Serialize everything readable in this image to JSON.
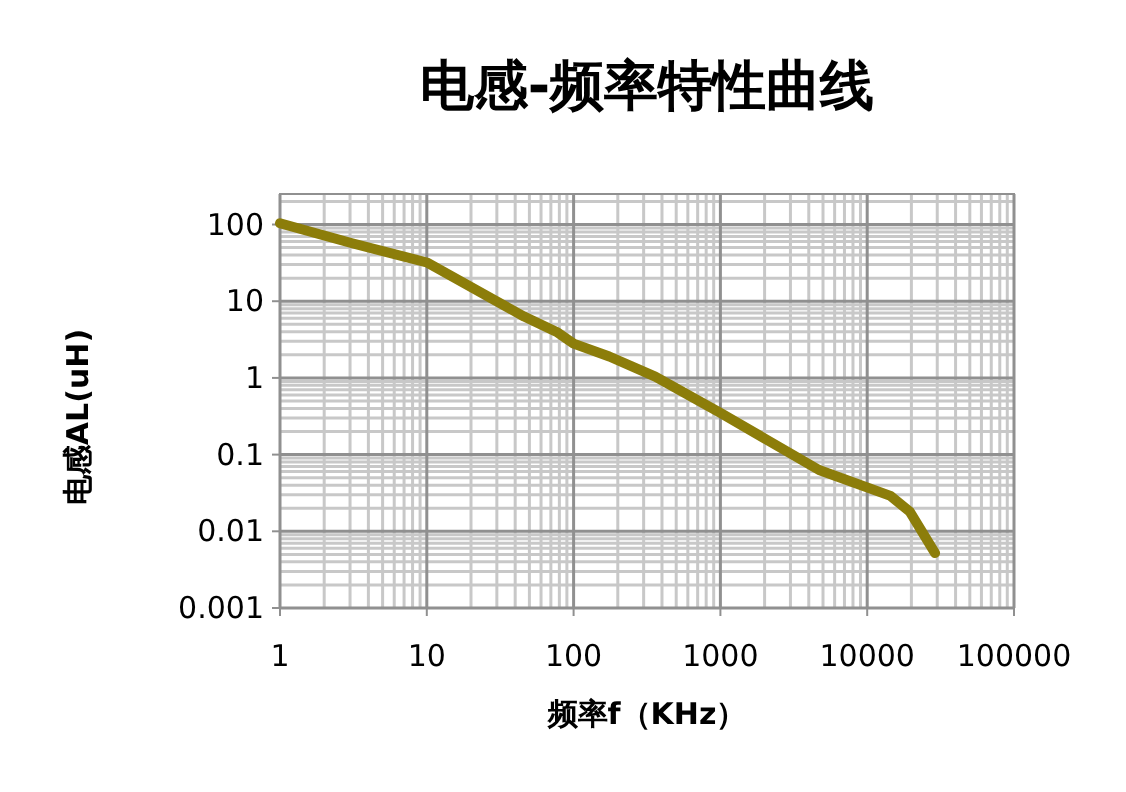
{
  "chart_data": {
    "type": "line",
    "title": "电感-频率特性曲线",
    "xlabel": "频率f（KHz）",
    "ylabel": "电感AL(uH)",
    "log": "xy",
    "grid": true,
    "marker": "none",
    "line_style": "solid",
    "xlim": [
      1,
      100000
    ],
    "xticks": [
      1,
      10,
      100,
      1000,
      10000,
      100000
    ],
    "ylim": [
      0.001,
      250
    ],
    "yticks": [
      0.001,
      0.01,
      0.1,
      1,
      10,
      100
    ],
    "series": [
      {
        "color": "#8c7d0a",
        "x": [
          1,
          3.1,
          10,
          46,
          78,
          100,
          175,
          360,
          1000,
          4700,
          14400,
          19500,
          29000
        ],
        "values": [
          104,
          57,
          32,
          6.3,
          3.9,
          2.8,
          1.9,
          1.04,
          0.35,
          0.063,
          0.029,
          0.018,
          0.0052
        ]
      }
    ]
  }
}
